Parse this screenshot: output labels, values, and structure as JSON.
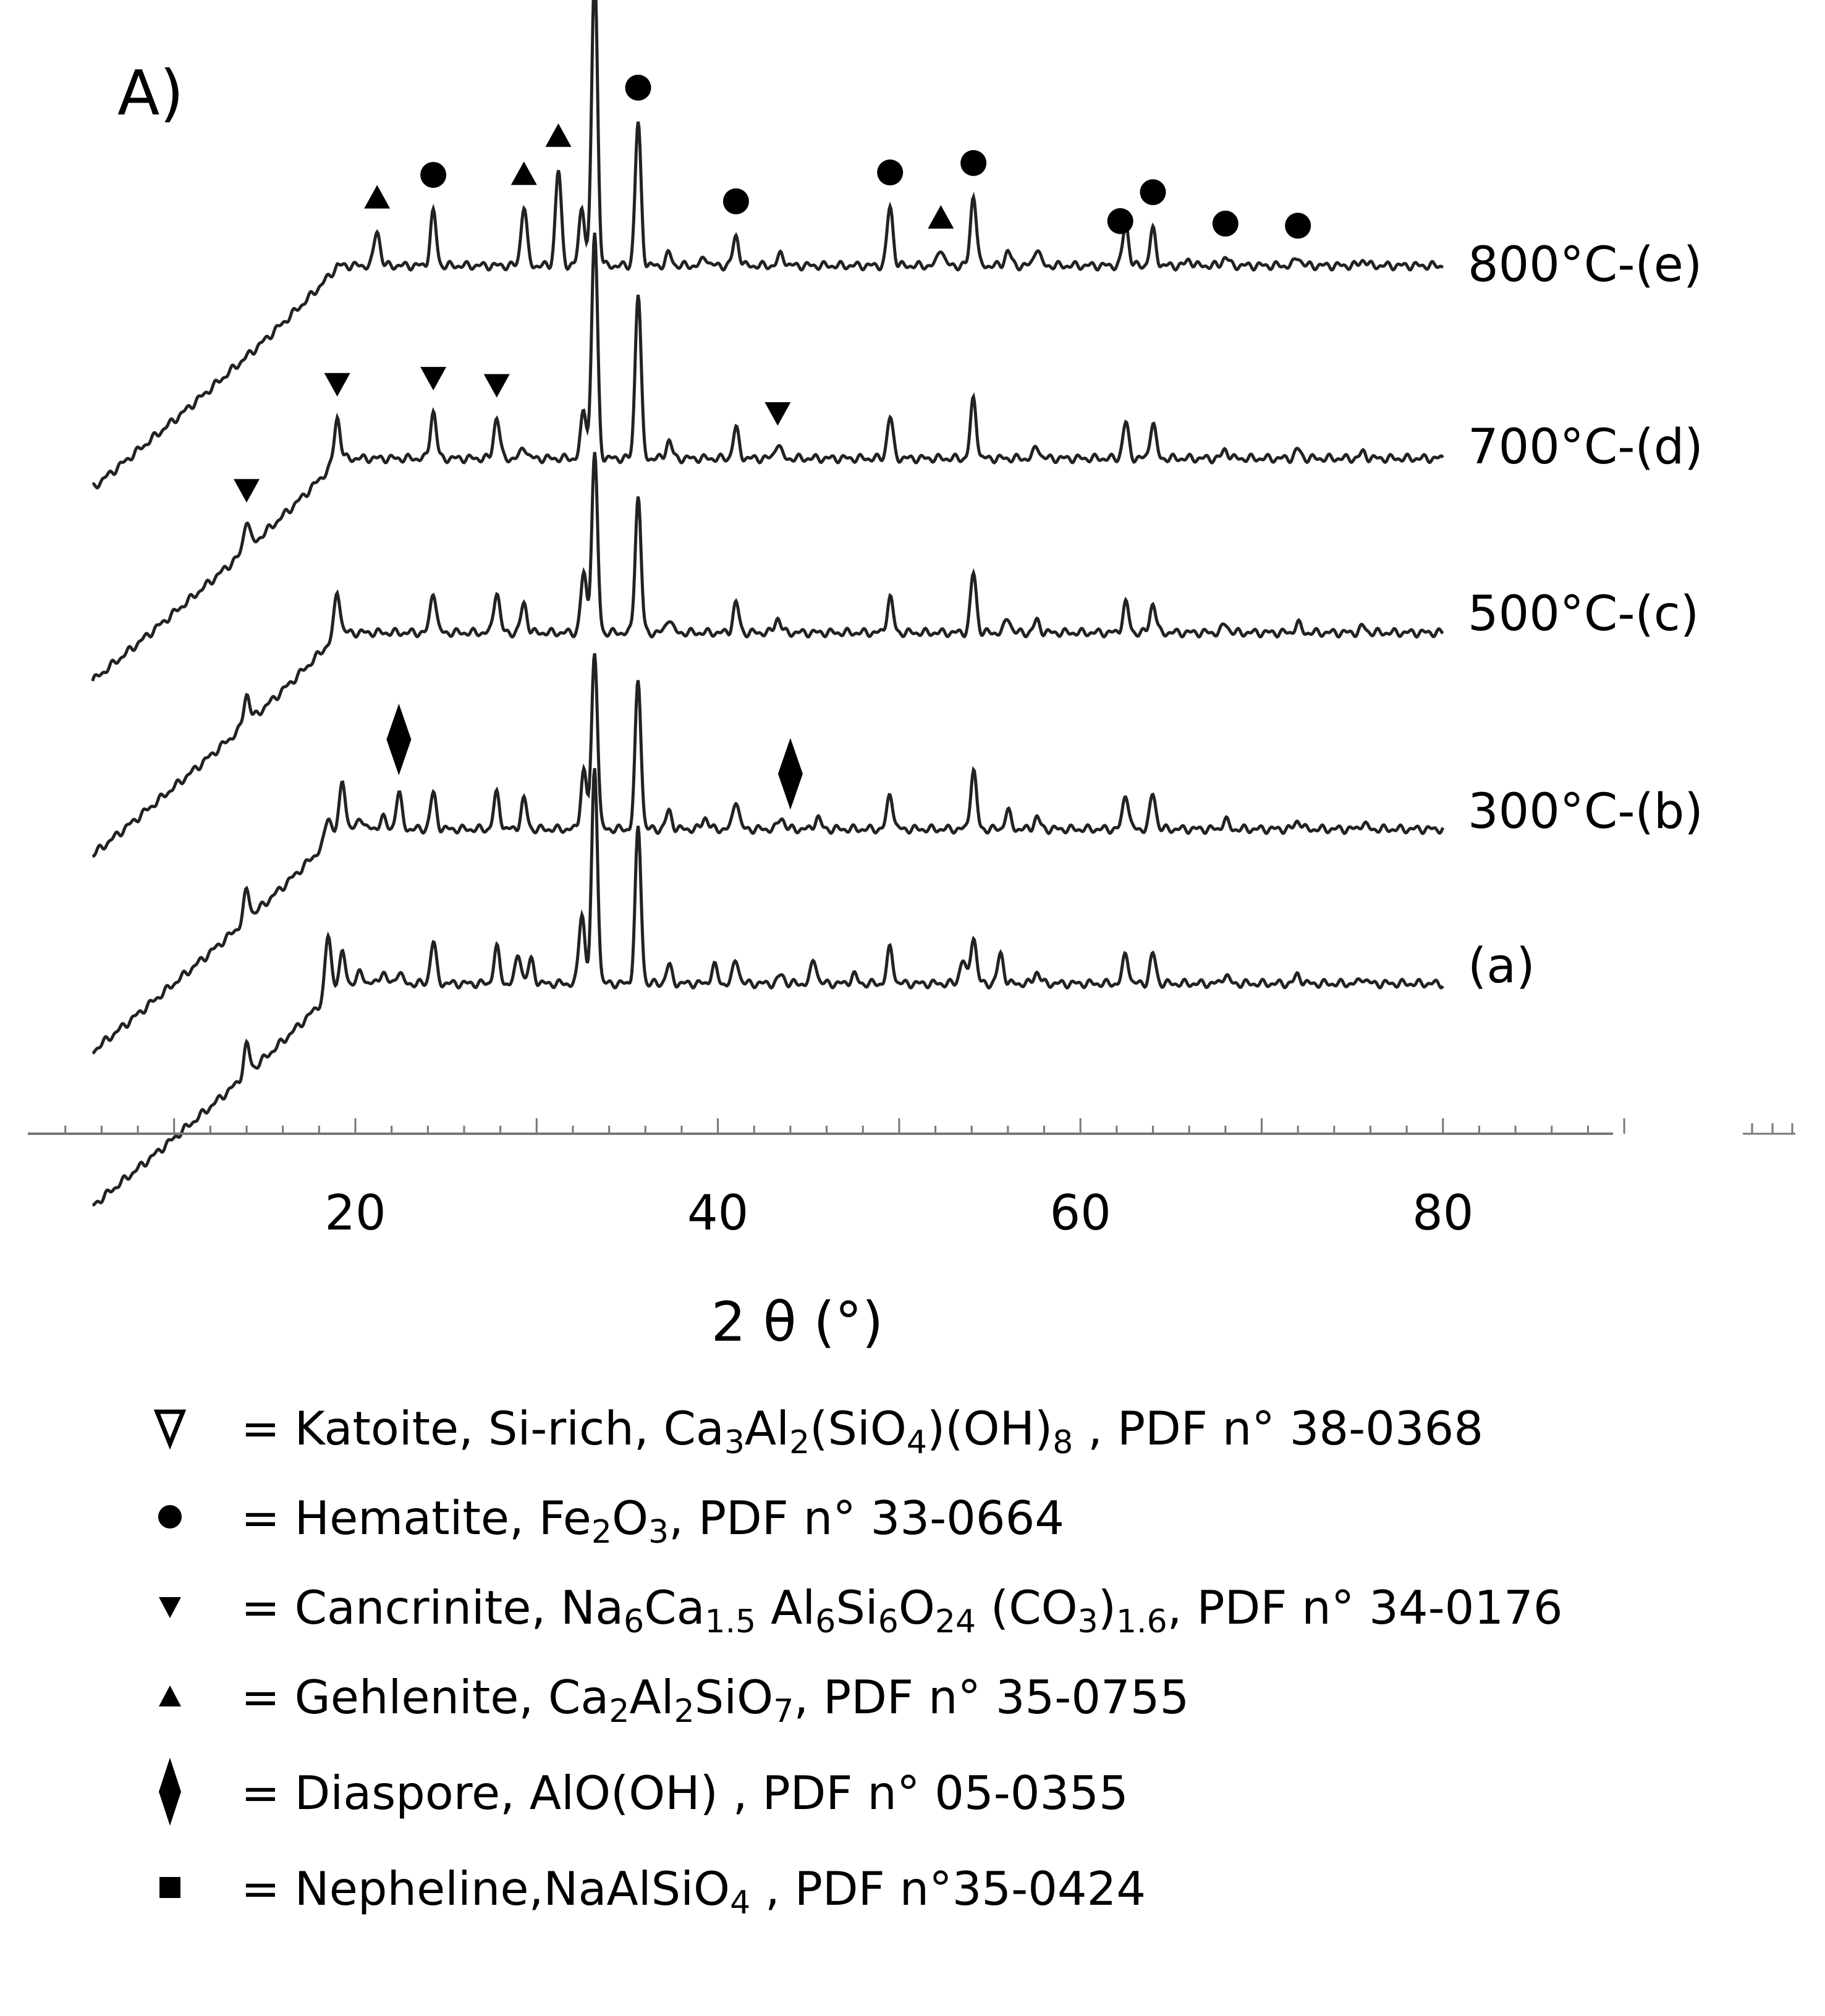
{
  "chart_data": {
    "type": "line",
    "panel_label": "A)",
    "xlabel": "2 θ (°)",
    "ylabel": "",
    "xlim": [
      2,
      95
    ],
    "x_ticks": [
      20,
      40,
      60,
      80
    ],
    "grid": false,
    "series": [
      {
        "name": "800°C-(e)",
        "key": "e",
        "peaks": [
          [
            21.2,
            0.06
          ],
          [
            24.3,
            0.09
          ],
          [
            29.3,
            0.1
          ],
          [
            31.2,
            0.16
          ],
          [
            32.5,
            0.1
          ],
          [
            33.2,
            0.5
          ],
          [
            35.6,
            0.24
          ],
          [
            37.3,
            0.02
          ],
          [
            39.3,
            0.015
          ],
          [
            41.0,
            0.05
          ],
          [
            43.5,
            0.02
          ],
          [
            49.5,
            0.1
          ],
          [
            52.3,
            0.03
          ],
          [
            54.1,
            0.12
          ],
          [
            56.0,
            0.025
          ],
          [
            57.6,
            0.03
          ],
          [
            62.5,
            0.07
          ],
          [
            64.0,
            0.06
          ],
          [
            66.0,
            0.01
          ],
          [
            68.0,
            0.015
          ],
          [
            72.0,
            0.015
          ],
          [
            75.6,
            0.01
          ]
        ]
      },
      {
        "name": "700°C-(d)",
        "key": "d",
        "peaks": [
          [
            14.0,
            0.05
          ],
          [
            19.0,
            0.07
          ],
          [
            24.3,
            0.08
          ],
          [
            27.8,
            0.07
          ],
          [
            29.3,
            0.02
          ],
          [
            32.6,
            0.08
          ],
          [
            33.2,
            0.38
          ],
          [
            35.6,
            0.28
          ],
          [
            37.3,
            0.03
          ],
          [
            41.0,
            0.05
          ],
          [
            43.3,
            0.025
          ],
          [
            49.5,
            0.07
          ],
          [
            54.1,
            0.1
          ],
          [
            57.6,
            0.02
          ],
          [
            62.5,
            0.06
          ],
          [
            64.0,
            0.06
          ],
          [
            68.0,
            0.015
          ],
          [
            72.0,
            0.015
          ],
          [
            75.6,
            0.01
          ]
        ]
      },
      {
        "name": "500°C-(c)",
        "key": "c",
        "peaks": [
          [
            14.0,
            0.05
          ],
          [
            19.0,
            0.07
          ],
          [
            24.3,
            0.07
          ],
          [
            27.8,
            0.07
          ],
          [
            29.3,
            0.05
          ],
          [
            32.6,
            0.1
          ],
          [
            33.2,
            0.3
          ],
          [
            35.6,
            0.23
          ],
          [
            37.3,
            0.025
          ],
          [
            41.0,
            0.05
          ],
          [
            43.3,
            0.025
          ],
          [
            49.5,
            0.06
          ],
          [
            54.1,
            0.1
          ],
          [
            56.0,
            0.025
          ],
          [
            57.6,
            0.02
          ],
          [
            62.5,
            0.05
          ],
          [
            64.0,
            0.05
          ],
          [
            68.0,
            0.015
          ],
          [
            72.0,
            0.015
          ],
          [
            75.6,
            0.01
          ]
        ]
      },
      {
        "name": "300°C-(b)",
        "key": "b",
        "peaks": [
          [
            14.0,
            0.05
          ],
          [
            18.5,
            0.04
          ],
          [
            19.3,
            0.08
          ],
          [
            20.3,
            0.02
          ],
          [
            21.5,
            0.02
          ],
          [
            22.4,
            0.06
          ],
          [
            24.3,
            0.06
          ],
          [
            27.8,
            0.06
          ],
          [
            29.3,
            0.05
          ],
          [
            32.6,
            0.1
          ],
          [
            33.2,
            0.3
          ],
          [
            35.6,
            0.25
          ],
          [
            37.3,
            0.03
          ],
          [
            39.3,
            0.02
          ],
          [
            41.0,
            0.05
          ],
          [
            43.5,
            0.02
          ],
          [
            45.5,
            0.02
          ],
          [
            49.5,
            0.06
          ],
          [
            54.1,
            0.1
          ],
          [
            56.0,
            0.03
          ],
          [
            57.6,
            0.02
          ],
          [
            62.5,
            0.06
          ],
          [
            64.0,
            0.06
          ],
          [
            68.0,
            0.015
          ],
          [
            72.0,
            0.015
          ],
          [
            75.6,
            0.01
          ]
        ]
      },
      {
        "name": "(a)",
        "key": "a",
        "peaks": [
          [
            14.0,
            0.05
          ],
          [
            18.5,
            0.1
          ],
          [
            19.3,
            0.05
          ],
          [
            20.3,
            0.02
          ],
          [
            21.5,
            0.02
          ],
          [
            22.4,
            0.02
          ],
          [
            24.3,
            0.07
          ],
          [
            27.8,
            0.06
          ],
          [
            29.0,
            0.05
          ],
          [
            29.7,
            0.04
          ],
          [
            32.5,
            0.12
          ],
          [
            33.2,
            0.36
          ],
          [
            35.6,
            0.26
          ],
          [
            37.3,
            0.03
          ],
          [
            39.8,
            0.03
          ],
          [
            41.0,
            0.04
          ],
          [
            43.5,
            0.015
          ],
          [
            45.3,
            0.04
          ],
          [
            47.5,
            0.015
          ],
          [
            49.5,
            0.06
          ],
          [
            53.5,
            0.04
          ],
          [
            54.1,
            0.08
          ],
          [
            55.6,
            0.05
          ],
          [
            57.6,
            0.02
          ],
          [
            62.5,
            0.05
          ],
          [
            64.0,
            0.05
          ],
          [
            68.0,
            0.015
          ],
          [
            72.0,
            0.015
          ],
          [
            75.6,
            0.01
          ]
        ]
      }
    ],
    "phase_markers": [
      {
        "series": "e",
        "phase": "Gehlenite",
        "x": [
          21.2,
          29.3,
          31.2,
          52.3
        ]
      },
      {
        "series": "e",
        "phase": "Hematite",
        "x": [
          24.3,
          33.2,
          35.6,
          41.0,
          49.5,
          54.1,
          62.2,
          64.0,
          68.0,
          72.0
        ]
      },
      {
        "series": "d",
        "phase": "Cancrinite",
        "x": [
          14.0,
          19.0,
          24.3,
          27.8,
          43.3
        ]
      },
      {
        "series": "b",
        "phase": "Diaspore",
        "x": [
          22.4,
          44.0
        ]
      }
    ]
  },
  "legend": [
    {
      "symbol": "open-down-triangle",
      "parts": [
        {
          "t": "= Katoite, Si-rich, Ca"
        },
        {
          "s": "3"
        },
        {
          "t": "Al"
        },
        {
          "s": "2"
        },
        {
          "t": "(SiO"
        },
        {
          "s": "4"
        },
        {
          "t": ")(OH)"
        },
        {
          "s": "8"
        },
        {
          "t": " , PDF n° 38-0368"
        }
      ]
    },
    {
      "symbol": "circle",
      "parts": [
        {
          "t": "= Hematite, Fe"
        },
        {
          "s": "2"
        },
        {
          "t": "O"
        },
        {
          "s": "3"
        },
        {
          "t": ", PDF n° 33-0664"
        }
      ]
    },
    {
      "symbol": "down-triangle",
      "parts": [
        {
          "t": "= Cancrinite, Na"
        },
        {
          "s": "6"
        },
        {
          "t": "Ca"
        },
        {
          "s": "1.5"
        },
        {
          "t": " Al"
        },
        {
          "s": "6"
        },
        {
          "t": "Si"
        },
        {
          "s": "6"
        },
        {
          "t": "O"
        },
        {
          "s": "24"
        },
        {
          "t": " (CO"
        },
        {
          "s": "3"
        },
        {
          "t": ")"
        },
        {
          "s": "1.6"
        },
        {
          "t": ", PDF n° 34-0176"
        }
      ]
    },
    {
      "symbol": "up-triangle",
      "parts": [
        {
          "t": "= Gehlenite, Ca"
        },
        {
          "s": "2"
        },
        {
          "t": "Al"
        },
        {
          "s": "2"
        },
        {
          "t": "SiO"
        },
        {
          "s": "7"
        },
        {
          "t": ", PDF n° 35-0755"
        }
      ]
    },
    {
      "symbol": "diamond",
      "parts": [
        {
          "t": "= Diaspore, AlO(OH) , PDF n° 05-0355"
        }
      ]
    },
    {
      "symbol": "square",
      "parts": [
        {
          "t": "= Nepheline,NaAlSiO"
        },
        {
          "s": "4"
        },
        {
          "t": " , PDF n°35-0424"
        }
      ]
    }
  ]
}
